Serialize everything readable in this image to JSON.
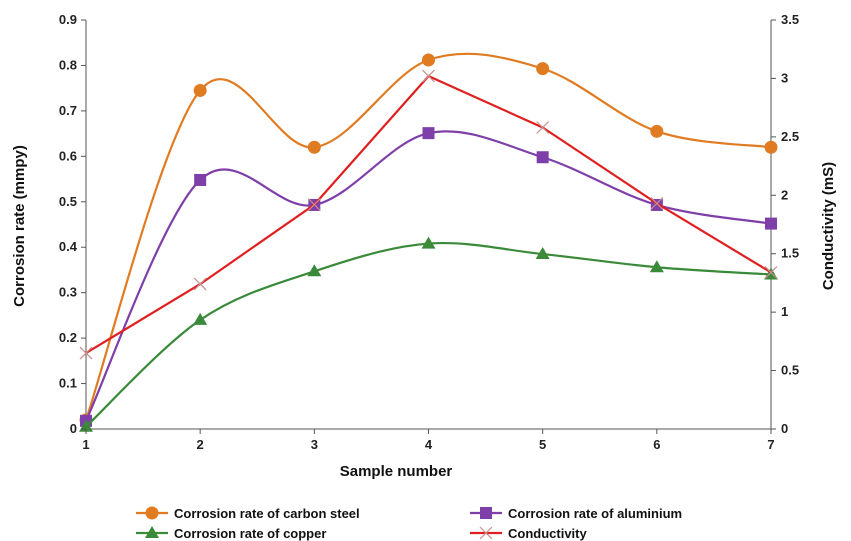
{
  "chart_data": {
    "type": "line",
    "x": [
      1,
      2,
      3,
      4,
      5,
      6,
      7
    ],
    "xlabel": "Sample number",
    "ylabel": "Corrosion rate (mmpy)",
    "y2label": "Conductivity (mS)",
    "xlim": [
      1,
      7
    ],
    "ylim": [
      0,
      0.9
    ],
    "y2lim": [
      0,
      3.5
    ],
    "xticks": [
      "1",
      "2",
      "3",
      "4",
      "5",
      "6",
      "7"
    ],
    "yticks": [
      "0",
      "0.1",
      "0.2",
      "0.3",
      "0.4",
      "0.5",
      "0.6",
      "0.7",
      "0.8",
      "0.9"
    ],
    "y2ticks": [
      "0",
      "0.5",
      "1",
      "1.5",
      "2",
      "2.5",
      "3",
      "3.5"
    ],
    "grid": false,
    "legend_position": "bottom",
    "series": [
      {
        "name": "Corrosion rate of carbon steel",
        "axis": "left",
        "marker": "circle",
        "color": "#e07b22",
        "values": [
          0.02,
          0.745,
          0.62,
          0.812,
          0.793,
          0.655,
          0.62
        ]
      },
      {
        "name": "Corrosion rate of aluminium",
        "axis": "left",
        "marker": "square",
        "color": "#7e3fa8",
        "values": [
          0.018,
          0.548,
          0.493,
          0.651,
          0.598,
          0.493,
          0.452
        ]
      },
      {
        "name": "Corrosion rate of copper",
        "axis": "left",
        "marker": "triangle",
        "color": "#3a8a3a",
        "values": [
          0.005,
          0.24,
          0.347,
          0.408,
          0.385,
          0.356,
          0.34
        ]
      },
      {
        "name": "Conductivity",
        "axis": "right",
        "marker": "x",
        "color": "#e02020",
        "values": [
          0.65,
          1.24,
          1.92,
          3.02,
          2.58,
          1.93,
          1.34
        ]
      }
    ]
  }
}
